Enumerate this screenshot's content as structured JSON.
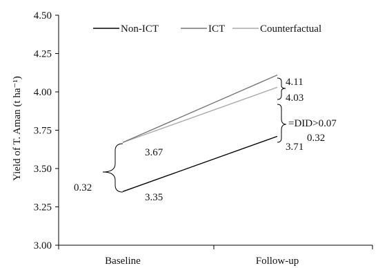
{
  "chart_data": {
    "type": "line",
    "categories": [
      "Baseline",
      "Follow-up"
    ],
    "ylabel": "Yield of T. Aman (t ha⁻¹)",
    "ylim": [
      3.0,
      4.5
    ],
    "yticks": [
      "3.00",
      "3.25",
      "3.50",
      "3.75",
      "4.00",
      "4.25",
      "4.50"
    ],
    "legend_position": "top",
    "series": [
      {
        "name": "Non-ICT",
        "values": [
          3.35,
          3.71
        ],
        "labels": [
          "3.35",
          "3.71"
        ],
        "color": "#000000"
      },
      {
        "name": "ICT",
        "values": [
          3.67,
          4.11
        ],
        "labels": [
          "3.67",
          "4.11"
        ],
        "color": "#777777"
      },
      {
        "name": "Counterfactual",
        "values": [
          3.67,
          4.03
        ],
        "labels": [
          "",
          "4.03"
        ],
        "color": "#aaaaaa"
      }
    ],
    "annotations": {
      "baseline_gap": "0.32",
      "followup_gap": "0.32",
      "did_text": "=DID>0.07"
    }
  }
}
